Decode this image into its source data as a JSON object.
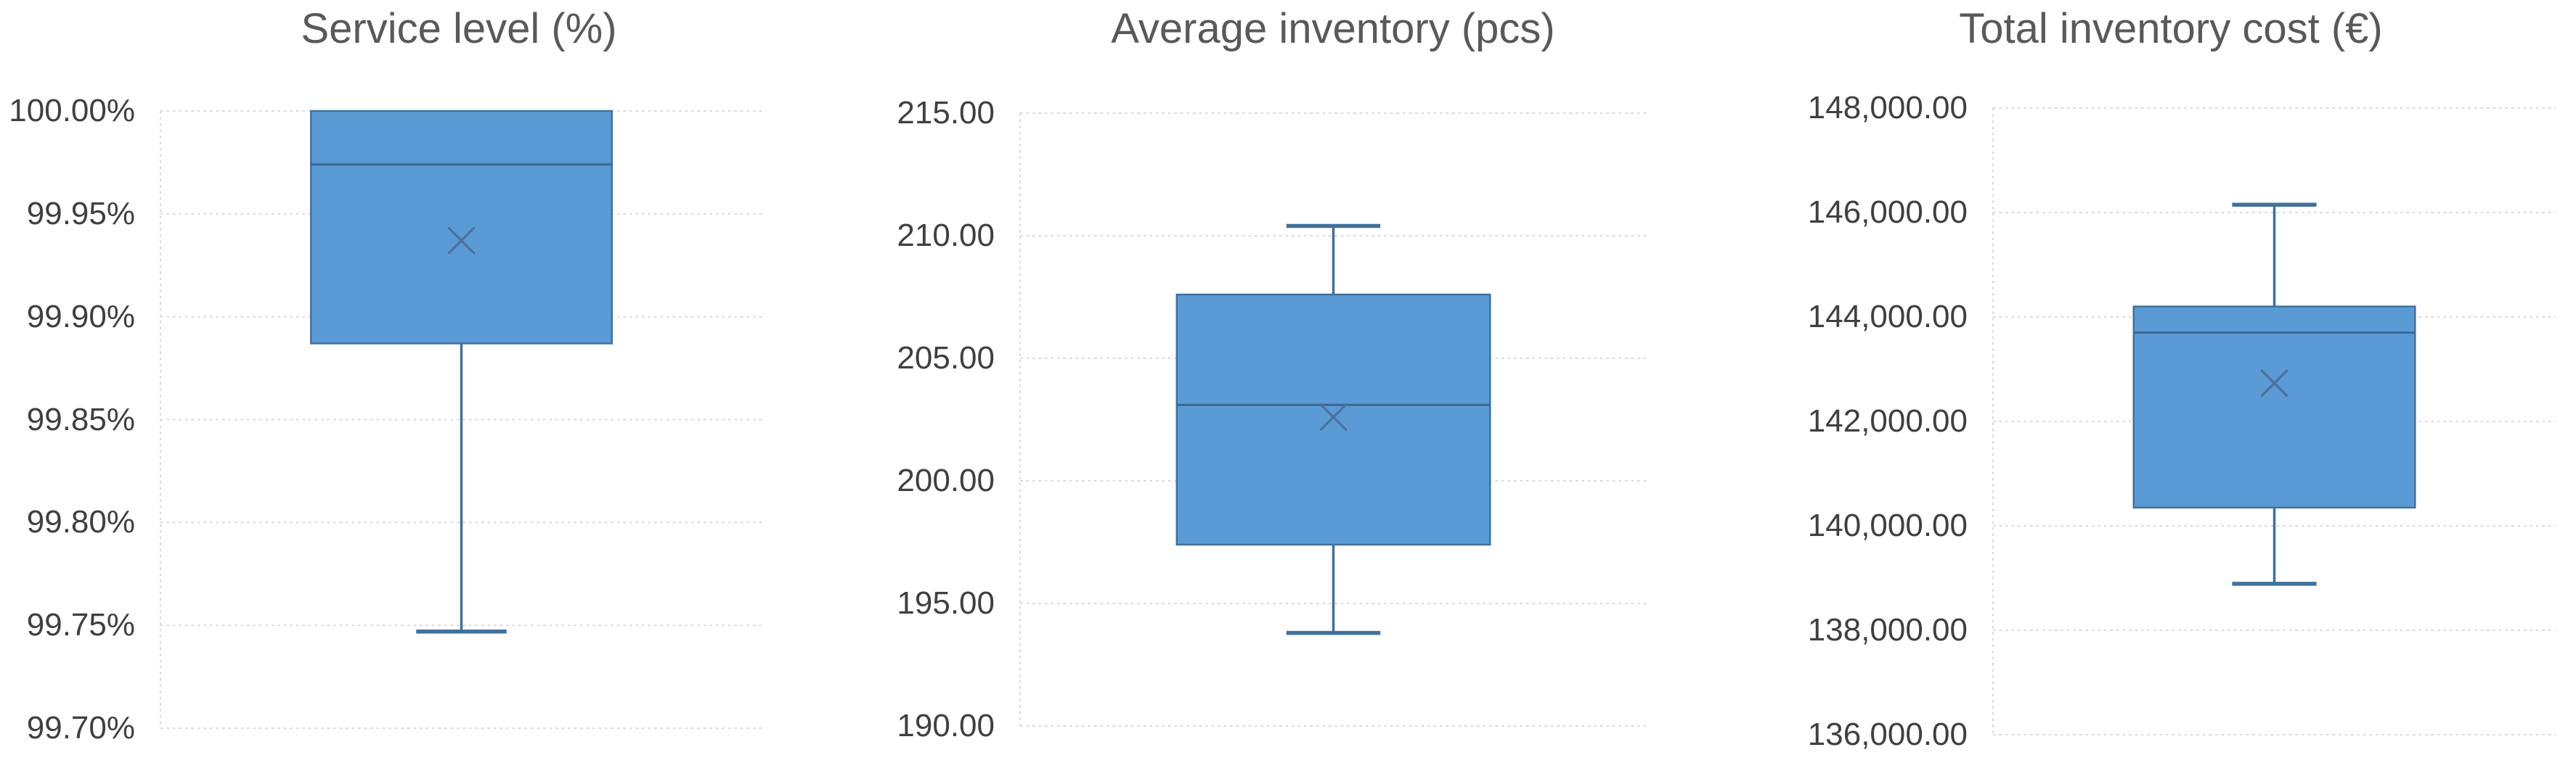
{
  "page": {
    "background": "#FFFFFF"
  },
  "styles": {
    "box_fill": "#5B9BD5",
    "box_border": "#41719C",
    "whisker_color": "#41719C",
    "median_color": "#3A6793",
    "mean_marker_color": "#4A6D9B",
    "gridline_color": "#D9D9D9",
    "title_color": "#595959",
    "tick_label_color": "#404040"
  },
  "chart_data": [
    {
      "type": "box",
      "title": "Service level (%)",
      "xlabel": "",
      "ylabel": "",
      "ylim": [
        99.7,
        100.0
      ],
      "grid": true,
      "legend": "none",
      "tick_labels": [
        "100.00%",
        "99.95%",
        "99.90%",
        "99.85%",
        "99.80%",
        "99.75%",
        "99.70%"
      ],
      "tick_values": [
        100.0,
        99.95,
        99.9,
        99.85,
        99.8,
        99.75,
        99.7
      ],
      "box": {
        "min": 99.747,
        "q1": 99.887,
        "median": 99.974,
        "q3": 100.0,
        "max": 100.0,
        "mean": 99.937
      }
    },
    {
      "type": "box",
      "title": "Average inventory (pcs)",
      "xlabel": "",
      "ylabel": "",
      "ylim": [
        190.0,
        215.0
      ],
      "grid": true,
      "legend": "none",
      "tick_labels": [
        "215.00",
        "210.00",
        "205.00",
        "200.00",
        "195.00",
        "190.00"
      ],
      "tick_values": [
        215.0,
        210.0,
        205.0,
        200.0,
        195.0,
        190.0
      ],
      "box": {
        "min": 193.8,
        "q1": 197.4,
        "median": 203.1,
        "q3": 207.6,
        "max": 210.4,
        "mean": 202.6
      }
    },
    {
      "type": "box",
      "title": "Total inventory cost (€)",
      "xlabel": "",
      "ylabel": "",
      "ylim": [
        136000,
        148000
      ],
      "grid": true,
      "legend": "none",
      "tick_labels": [
        "148,000.00",
        "146,000.00",
        "144,000.00",
        "142,000.00",
        "140,000.00",
        "138,000.00",
        "136,000.00"
      ],
      "tick_values": [
        148000,
        146000,
        144000,
        142000,
        140000,
        138000,
        136000
      ],
      "box": {
        "min": 138890,
        "q1": 140350,
        "median": 143700,
        "q3": 144200,
        "max": 146150,
        "mean": 142730
      }
    }
  ]
}
